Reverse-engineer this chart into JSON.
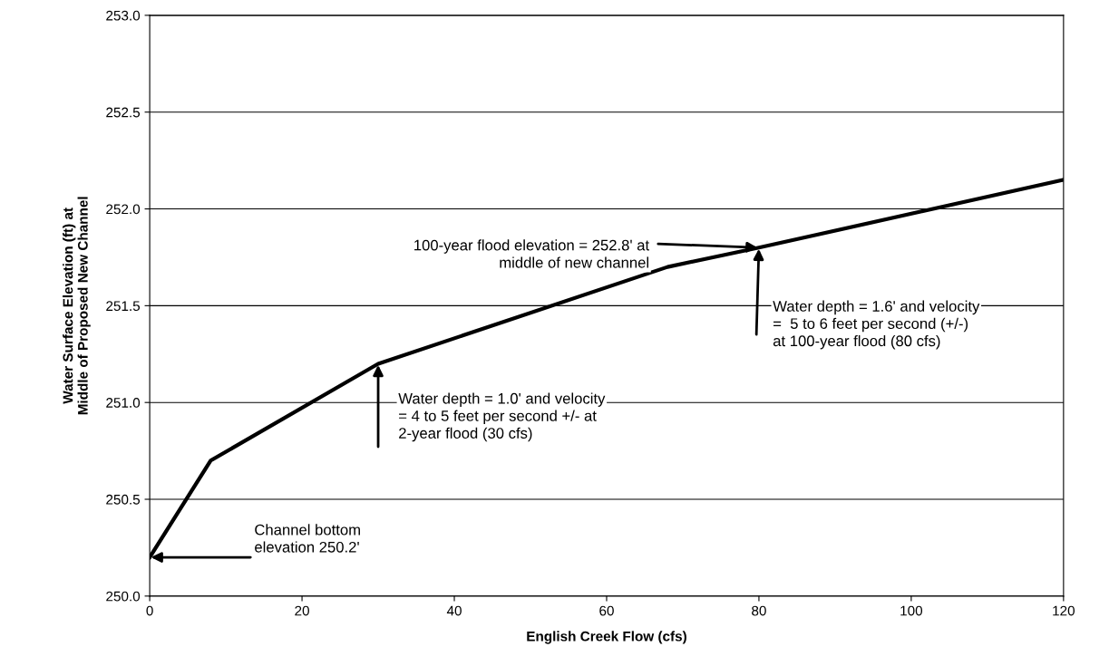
{
  "chart_data": {
    "type": "line",
    "xlabel": "English Creek Flow (cfs)",
    "ylabel": "Water Surface Elevation (ft) at\nMiddle of Proposed New Channel",
    "x": [
      0,
      8,
      30,
      68,
      80,
      120
    ],
    "series": [
      {
        "color": "#000000",
        "values": [
          250.2,
          250.7,
          251.2,
          251.7,
          251.8,
          252.15
        ]
      }
    ],
    "xlim": [
      0,
      120
    ],
    "xticks": [
      0,
      20,
      40,
      60,
      80,
      100,
      120
    ],
    "ylim": [
      250,
      253
    ],
    "yticks": [
      {
        "value": 250,
        "label": "250.0"
      },
      {
        "value": 250.5,
        "label": "250.5"
      },
      {
        "value": 251,
        "label": "251.0"
      },
      {
        "value": 251.5,
        "label": "251.5"
      },
      {
        "value": 252,
        "label": "252.0"
      },
      {
        "value": 252.5,
        "label": "252.5"
      },
      {
        "value": 253,
        "label": "253.0"
      }
    ],
    "grid": "y",
    "marker": "none",
    "line_style": "solid",
    "annotations": [
      {
        "text": "Channel bottom\nelevation 250.2'",
        "x": 0,
        "y": 250.2
      },
      {
        "text": "Water depth = 1.0' and velocity\n= 4 to 5 feet per second +/- at\n2-year flood (30 cfs)",
        "x": 30,
        "y": 251.2
      },
      {
        "text": "100-year flood elevation = 252.8' at\nmiddle of new channel",
        "x": 80,
        "y": 251.8
      },
      {
        "text": "Water depth = 1.6' and velocity\n=  5 to 6 feet per second (+/-)\nat 100-year flood (80 cfs)",
        "x": 80,
        "y": 251.8
      }
    ]
  }
}
